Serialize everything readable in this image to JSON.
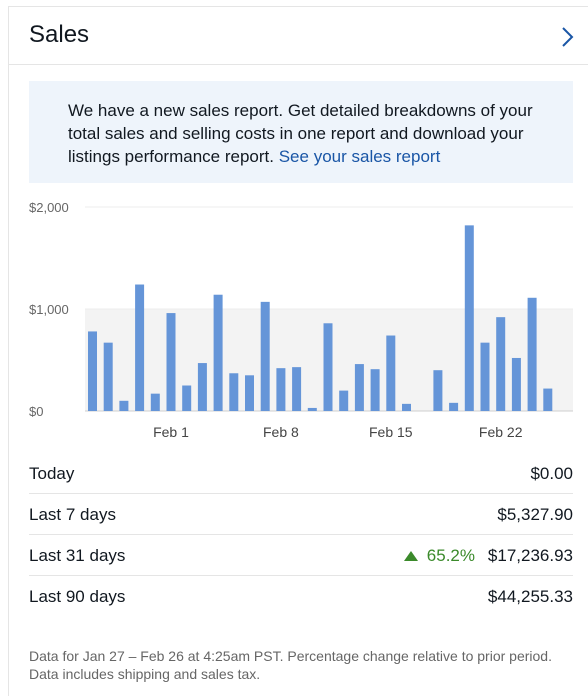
{
  "header": {
    "title": "Sales"
  },
  "banner": {
    "text": "We have a new sales report. Get detailed breakdowns of your total sales and selling costs in one report and download your listings performance report.",
    "link": "See your sales report"
  },
  "chart_data": {
    "type": "bar",
    "ylim": [
      0,
      2000
    ],
    "y_ticks": [
      "$2,000",
      "$1,000",
      "$0"
    ],
    "y_tick_values": [
      2000,
      1000,
      0
    ],
    "x_tick_labels": [
      "Feb 1",
      "Feb 8",
      "Feb 15",
      "Feb 22"
    ],
    "x_tick_indices": [
      5,
      12,
      19,
      26
    ],
    "color": "#6595d8",
    "values": [
      780,
      670,
      100,
      1240,
      170,
      960,
      250,
      470,
      1140,
      370,
      350,
      1070,
      420,
      430,
      30,
      860,
      200,
      460,
      410,
      740,
      70,
      0,
      400,
      80,
      1820,
      670,
      920,
      520,
      1110,
      220
    ],
    "grid": "alternating bands"
  },
  "summary": {
    "rows": [
      {
        "label": "Today",
        "value": "$0.00"
      },
      {
        "label": "Last 7 days",
        "value": "$5,327.90"
      },
      {
        "label": "Last 31 days",
        "value": "$17,236.93",
        "trend": "65.2%"
      },
      {
        "label": "Last 90 days",
        "value": "$44,255.33"
      }
    ]
  },
  "footnote": "Data for Jan 27 – Feb 26 at 4:25am PST. Percentage change relative to prior period. Data includes shipping and sales tax.",
  "colors": {
    "bar": "#6595d8",
    "link": "#1a56a6",
    "trend_up": "#3b8a2b",
    "banner_bg": "#eef4fb"
  }
}
